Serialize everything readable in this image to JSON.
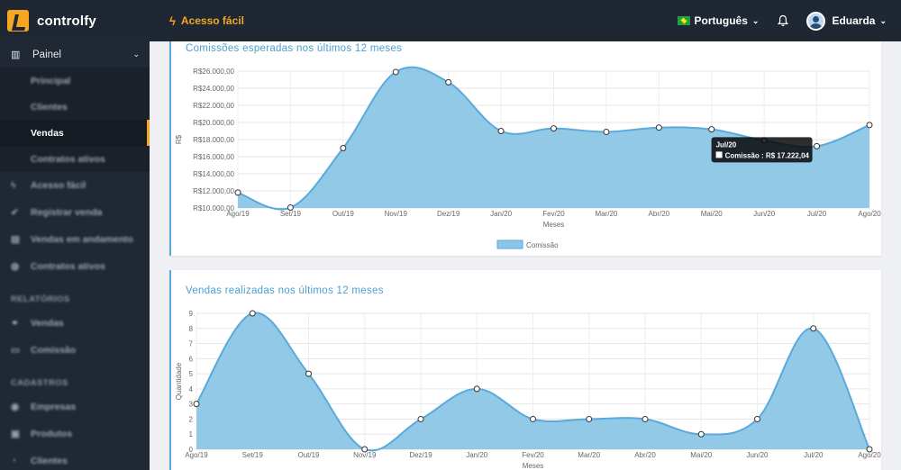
{
  "app": {
    "brand": "controlfy",
    "quick_access": "Acesso fácil",
    "language": "Português",
    "user_name": "Eduarda"
  },
  "sidebar": {
    "painel": "Painel",
    "painel_items": [
      "Principal",
      "Clientes",
      "Vendas",
      "Contratos ativos"
    ],
    "active_sub": 2,
    "main_items": [
      "Acesso fácil",
      "Registrar venda",
      "Vendas em andamento",
      "Contratos ativos"
    ],
    "section_relatorios": "RELATÓRIOS",
    "relatorios_items": [
      "Vendas",
      "Comissão"
    ],
    "section_cadastros": "CADASTROS",
    "cadastros_items": [
      "Empresas",
      "Produtos",
      "Clientes"
    ]
  },
  "chart_data": [
    {
      "type": "area",
      "title": "Comissões esperadas nos últimos 12 meses",
      "xlabel": "Meses",
      "ylabel": "R$",
      "x": [
        "Ago/19",
        "Set/19",
        "Out/19",
        "Nov/19",
        "Dez/19",
        "Jan/20",
        "Fev/20",
        "Mar/20",
        "Abr/20",
        "Mai/20",
        "Jun/20",
        "Jul/20",
        "Ago/20"
      ],
      "series": [
        {
          "name": "Comissão",
          "values": [
            11800,
            10050,
            17000,
            25900,
            24700,
            19000,
            19300,
            18900,
            19400,
            19200,
            17900,
            17222.04,
            19700
          ]
        }
      ],
      "ylim": [
        10000,
        26000
      ],
      "yticks": [
        "R$10.000,00",
        "R$12.000,00",
        "R$14.000,00",
        "R$16.000,00",
        "R$18.000,00",
        "R$20.000,00",
        "R$22.000,00",
        "R$24.000,00",
        "R$26.000,00"
      ],
      "legend": "bottom",
      "grid": true,
      "tooltip": {
        "title": "Jul/20",
        "label": "Comissão : R$ 17.222,04"
      },
      "color": "#8bc6e6",
      "line_color": "#5aa9dc"
    },
    {
      "type": "area",
      "title": "Vendas realizadas nos últimos 12 meses",
      "xlabel": "Meses",
      "ylabel": "Quantidade",
      "x": [
        "Ago/19",
        "Set/19",
        "Out/19",
        "Nov/19",
        "Dez/19",
        "Jan/20",
        "Fev/20",
        "Mar/20",
        "Abr/20",
        "Mai/20",
        "Jun/20",
        "Jul/20",
        "Ago/20"
      ],
      "series": [
        {
          "values": [
            3,
            9,
            5,
            0,
            2,
            4,
            2,
            2,
            2,
            1,
            2,
            8,
            0
          ]
        }
      ],
      "ylim": [
        0,
        9
      ],
      "yticks": [
        "0",
        "1",
        "2",
        "3",
        "4",
        "5",
        "6",
        "7",
        "8",
        "9"
      ],
      "grid": true,
      "color": "#8bc6e6",
      "line_color": "#5aa9dc"
    }
  ]
}
